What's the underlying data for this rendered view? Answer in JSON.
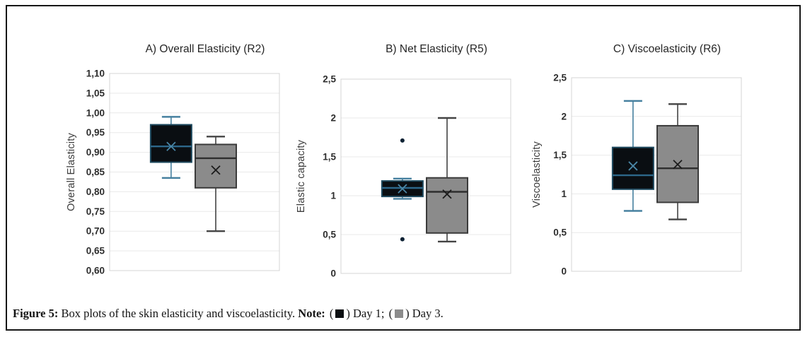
{
  "figure": {
    "caption": {
      "label": "Figure 5:",
      "body": "Box plots of the skin elasticity and viscoelasticity.",
      "note_label": "Note:",
      "paren_open": "(",
      "paren_close": ")",
      "legend": [
        {
          "label": "Day 1;",
          "swatch_color": "#0b0e11"
        },
        {
          "label": "Day 3.",
          "swatch_color": "#8c8c8c"
        }
      ]
    }
  },
  "styles": {
    "frame_border": "#161616",
    "grid": "#e9e9e9",
    "plot_border": "#d4d4d4",
    "tick_color": "#2d2d2d",
    "title_color": "#262626",
    "ylabel_color": "#3d3d3d",
    "outlier": "#0d2133",
    "day1": {
      "fill": "#0a0e12",
      "stroke": "#1f4a5f",
      "whisker": "#46809f",
      "median": "#2d678a",
      "mean": "#4a86a6"
    },
    "day3": {
      "fill": "#8b8b8b",
      "stroke": "#3b3b3b",
      "whisker": "#444444",
      "median": "#2e2e2e",
      "mean": "#1b1b1b"
    }
  },
  "chart_data": [
    {
      "type": "boxplot",
      "title": "A) Overall Elasticity (R2)",
      "ylabel": "Overall Elasticity",
      "ylim": [
        0.6,
        1.1
      ],
      "grid": true,
      "legend_position": "none",
      "yticks": [
        {
          "value": 1.1,
          "label": "1,10"
        },
        {
          "value": 1.05,
          "label": "1,05"
        },
        {
          "value": 1.0,
          "label": "1,00"
        },
        {
          "value": 0.95,
          "label": "0,95"
        },
        {
          "value": 0.9,
          "label": "0,90"
        },
        {
          "value": 0.85,
          "label": "0,85"
        },
        {
          "value": 0.8,
          "label": "0,80"
        },
        {
          "value": 0.75,
          "label": "0,75"
        },
        {
          "value": 0.7,
          "label": "0,70"
        },
        {
          "value": 0.65,
          "label": "0,65"
        },
        {
          "value": 0.6,
          "label": "0,60"
        }
      ],
      "series": [
        {
          "name": "Day 1",
          "whisker_low": 0.835,
          "q1": 0.875,
          "median": 0.915,
          "q3": 0.97,
          "whisker_high": 0.99,
          "mean": 0.915,
          "outliers": []
        },
        {
          "name": "Day 3",
          "whisker_low": 0.7,
          "q1": 0.81,
          "median": 0.885,
          "q3": 0.92,
          "whisker_high": 0.94,
          "mean": 0.855,
          "outliers": []
        }
      ]
    },
    {
      "type": "boxplot",
      "title": "B) Net Elasticity (R5)",
      "ylabel": "Elastic capacity",
      "ylim": [
        0,
        2.5
      ],
      "grid": true,
      "legend_position": "none",
      "yticks": [
        {
          "value": 2.5,
          "label": "2,5"
        },
        {
          "value": 2.0,
          "label": "2"
        },
        {
          "value": 1.5,
          "label": "1,5"
        },
        {
          "value": 1.0,
          "label": "1"
        },
        {
          "value": 0.5,
          "label": "0,5"
        },
        {
          "value": 0.0,
          "label": "0"
        }
      ],
      "series": [
        {
          "name": "Day 1",
          "whisker_low": 0.96,
          "q1": 0.99,
          "median": 1.1,
          "q3": 1.19,
          "whisker_high": 1.22,
          "mean": 1.09,
          "outliers": [
            1.71,
            0.44
          ]
        },
        {
          "name": "Day 3",
          "whisker_low": 0.41,
          "q1": 0.52,
          "median": 1.05,
          "q3": 1.23,
          "whisker_high": 2.0,
          "mean": 1.02,
          "outliers": []
        }
      ]
    },
    {
      "type": "boxplot",
      "title": "C) Viscoelasticity (R6)",
      "ylabel": "Viscoelasticity",
      "ylim": [
        0,
        2.5
      ],
      "grid": true,
      "legend_position": "none",
      "yticks": [
        {
          "value": 2.5,
          "label": "2,5"
        },
        {
          "value": 2.0,
          "label": "2"
        },
        {
          "value": 1.5,
          "label": "1,5"
        },
        {
          "value": 1.0,
          "label": "1"
        },
        {
          "value": 0.5,
          "label": "0,5"
        },
        {
          "value": 0.0,
          "label": "0"
        }
      ],
      "series": [
        {
          "name": "Day 1",
          "whisker_low": 0.78,
          "q1": 1.06,
          "median": 1.24,
          "q3": 1.6,
          "whisker_high": 2.2,
          "mean": 1.36,
          "outliers": []
        },
        {
          "name": "Day 3",
          "whisker_low": 0.67,
          "q1": 0.89,
          "median": 1.33,
          "q3": 1.88,
          "whisker_high": 2.16,
          "mean": 1.38,
          "outliers": []
        }
      ]
    }
  ]
}
